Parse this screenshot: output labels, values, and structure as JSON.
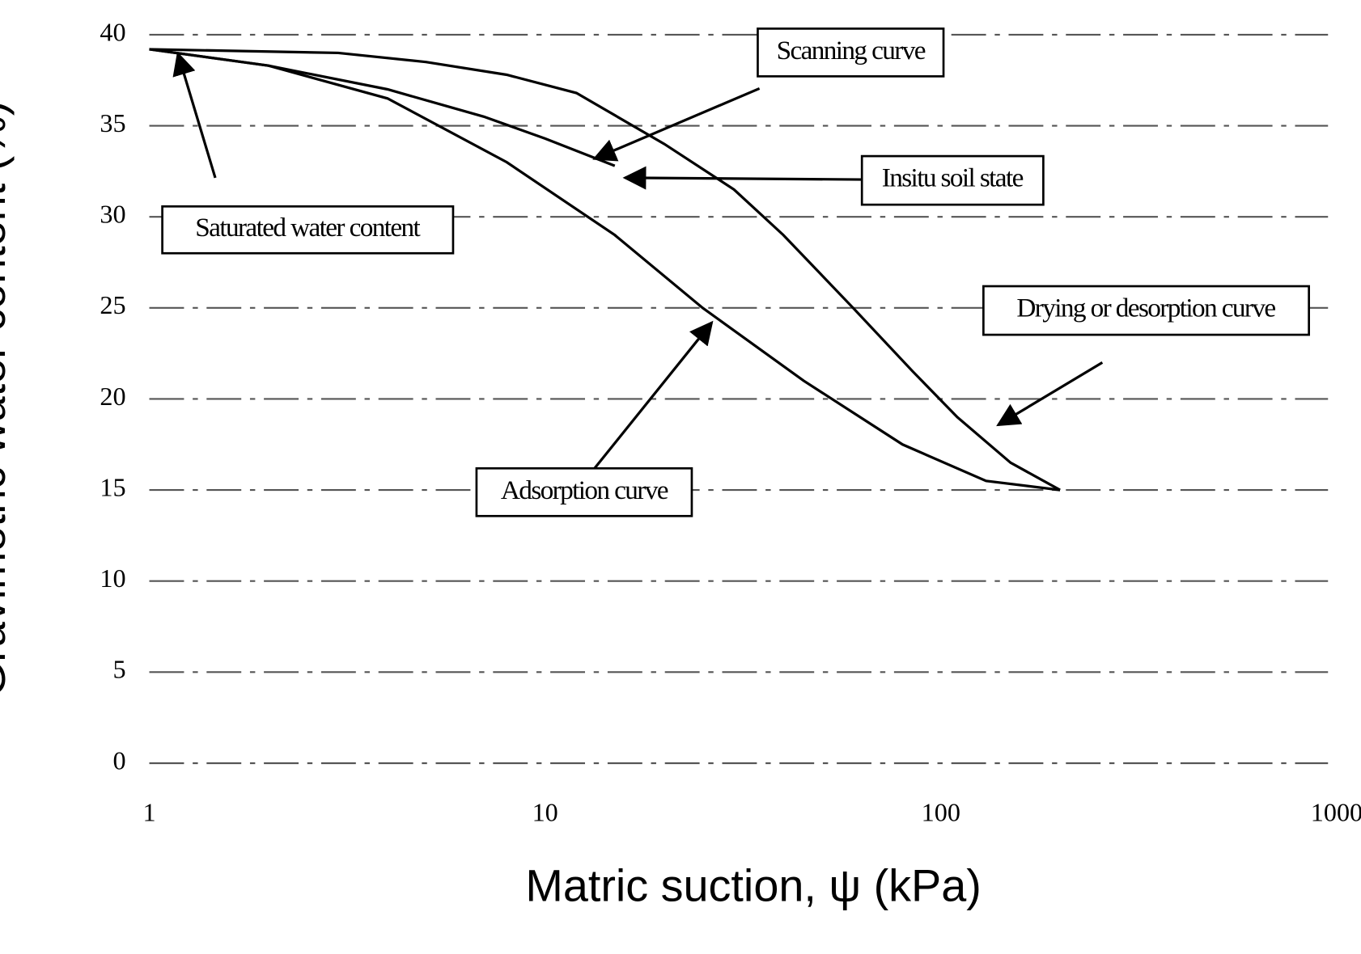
{
  "chart_data": {
    "type": "line",
    "x_label": "Matric suction, ψ  (kPa)",
    "y_label": "Gravimetric water content (%)",
    "xscale": "log",
    "xlim": [
      1,
      1000
    ],
    "xticks": [
      1,
      10,
      100,
      1000
    ],
    "ylim": [
      0,
      40
    ],
    "yticks": [
      0,
      5,
      10,
      15,
      20,
      25,
      30,
      35,
      40
    ],
    "grid": true,
    "series": [
      {
        "name": "Drying or desorption curve",
        "color": "#000000",
        "x": [
          1,
          3,
          5,
          8,
          12,
          20,
          30,
          40,
          60,
          85,
          110,
          150,
          200
        ],
        "values": [
          39.2,
          39,
          38.5,
          37.8,
          36.8,
          34,
          31.5,
          29,
          25,
          21.5,
          19,
          16.5,
          15
        ]
      },
      {
        "name": "Scanning curve",
        "color": "#000000",
        "x": [
          1,
          2,
          4,
          7,
          10,
          15
        ],
        "values": [
          39.2,
          38.3,
          37,
          35.5,
          34.3,
          32.8
        ]
      },
      {
        "name": "Adsorption curve",
        "color": "#000000",
        "x": [
          200,
          130,
          80,
          45,
          25,
          15,
          8,
          4,
          2,
          1
        ],
        "values": [
          15,
          15.5,
          17.5,
          21,
          25,
          29,
          33,
          36.5,
          38.3,
          39.2
        ]
      }
    ],
    "annotations": [
      "Insitu soil state",
      "Saturated water content"
    ]
  }
}
